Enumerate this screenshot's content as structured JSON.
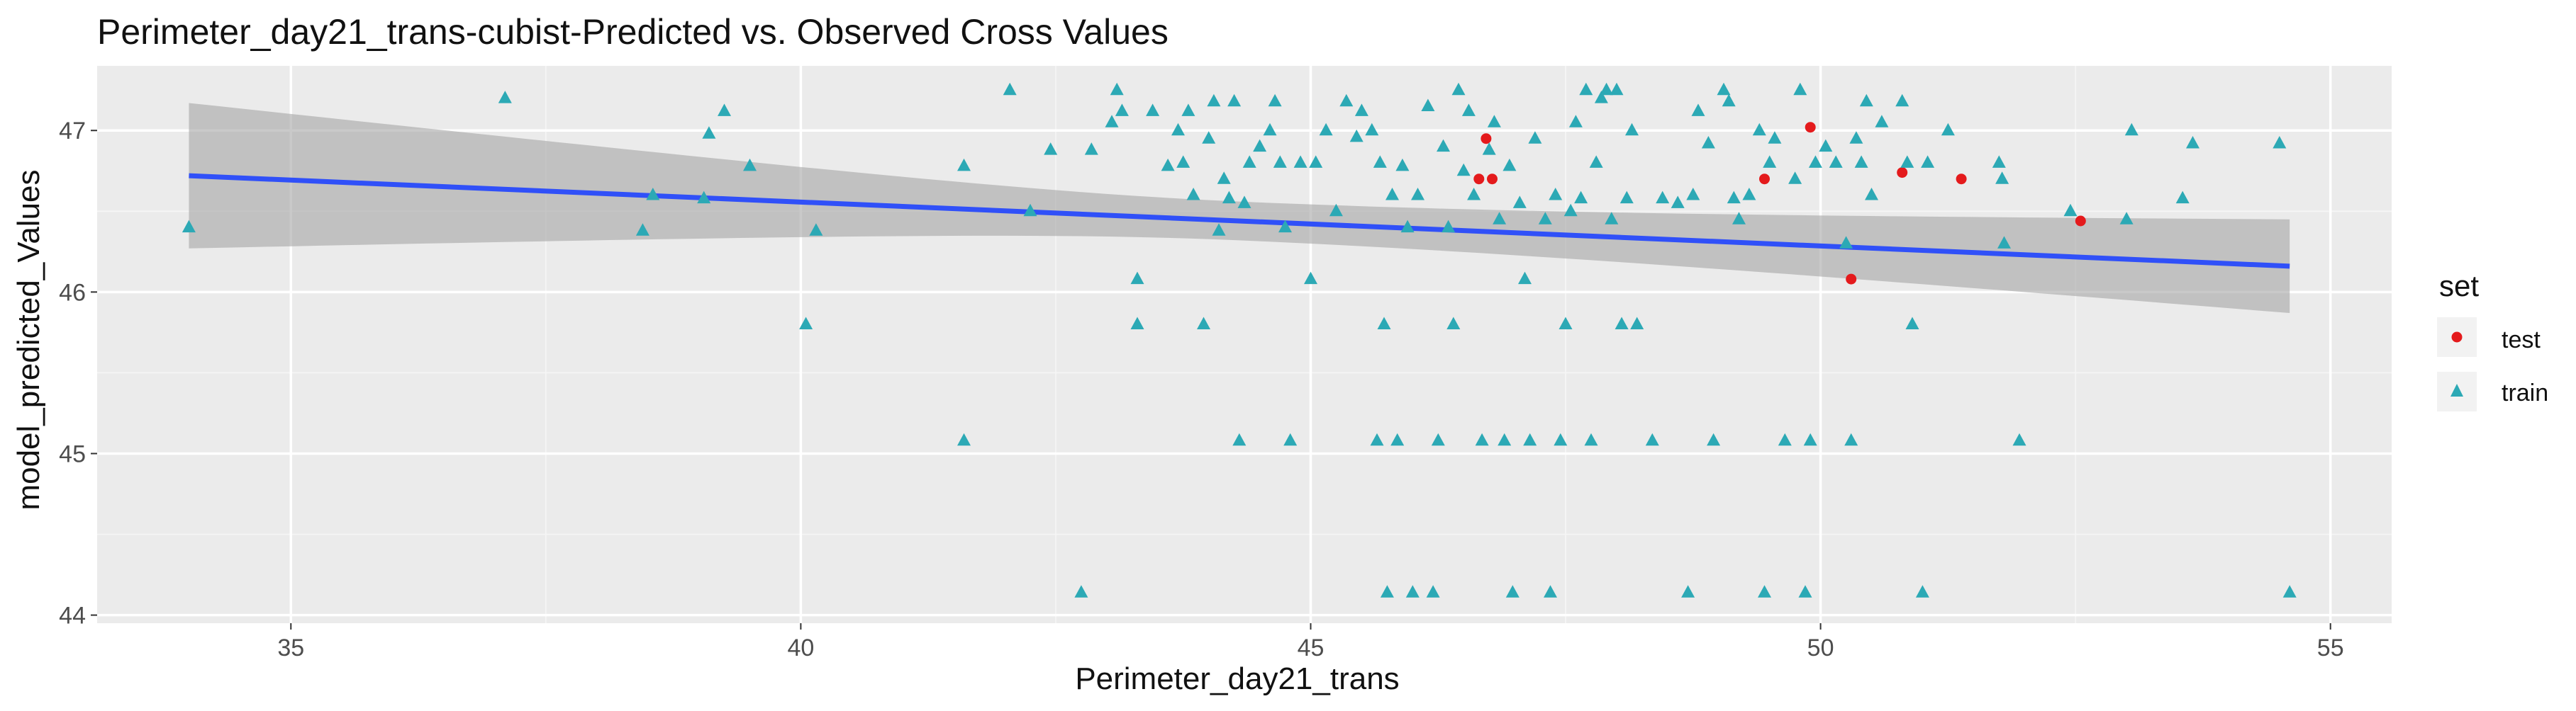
{
  "chart_data": {
    "type": "scatter",
    "title": "Perimeter_day21_trans-cubist-Predicted vs. Observed Cross Values",
    "xlabel": "Perimeter_day21_trans",
    "ylabel": "model_predicted_Values",
    "xlim": [
      33.1,
      55.6
    ],
    "ylim": [
      43.95,
      47.4
    ],
    "x_ticks": [
      35,
      40,
      45,
      50,
      55
    ],
    "y_ticks": [
      44,
      45,
      46,
      47
    ],
    "grid": true,
    "legend": {
      "title": "set",
      "position": "right",
      "entries": [
        {
          "label": "test",
          "color": "#F8766D",
          "shape": "circle"
        },
        {
          "label": "train",
          "color": "#00BFC4",
          "shape": "triangle"
        }
      ]
    },
    "colors": {
      "panel_background": "#EBEBEB",
      "grid_major": "#FFFFFF",
      "grid_minor": "#F5F5F5",
      "test_points": "#E41A1C",
      "train_points": "#2CA9B5",
      "smooth_line": "#3050F8",
      "confidence_band": "#A8A8A8"
    },
    "series": [
      {
        "name": "test",
        "shape": "circle",
        "points": [
          [
            46.65,
            46.7
          ],
          [
            46.78,
            46.7
          ],
          [
            46.72,
            46.95
          ],
          [
            49.45,
            46.7
          ],
          [
            49.9,
            47.02
          ],
          [
            50.3,
            46.08
          ],
          [
            50.8,
            46.74
          ],
          [
            51.38,
            46.7
          ],
          [
            52.55,
            46.44
          ]
        ]
      },
      {
        "name": "train",
        "shape": "triangle",
        "points": [
          [
            34.0,
            46.4
          ],
          [
            37.1,
            47.2
          ],
          [
            38.45,
            46.38
          ],
          [
            38.55,
            46.6
          ],
          [
            39.05,
            46.58
          ],
          [
            39.1,
            46.98
          ],
          [
            39.25,
            47.12
          ],
          [
            39.5,
            46.78
          ],
          [
            40.05,
            45.8
          ],
          [
            40.15,
            46.38
          ],
          [
            41.6,
            46.78
          ],
          [
            41.6,
            45.08
          ],
          [
            42.05,
            47.25
          ],
          [
            42.25,
            46.5
          ],
          [
            42.45,
            46.88
          ],
          [
            42.75,
            44.14
          ],
          [
            42.85,
            46.88
          ],
          [
            43.05,
            47.05
          ],
          [
            43.1,
            47.25
          ],
          [
            43.15,
            47.12
          ],
          [
            43.3,
            46.08
          ],
          [
            43.3,
            45.8
          ],
          [
            43.45,
            47.12
          ],
          [
            43.6,
            46.78
          ],
          [
            43.7,
            47.0
          ],
          [
            43.75,
            46.8
          ],
          [
            43.8,
            47.12
          ],
          [
            43.85,
            46.6
          ],
          [
            43.95,
            45.8
          ],
          [
            44.0,
            46.95
          ],
          [
            44.05,
            47.18
          ],
          [
            44.1,
            46.38
          ],
          [
            44.15,
            46.7
          ],
          [
            44.2,
            46.58
          ],
          [
            44.25,
            47.18
          ],
          [
            44.3,
            45.08
          ],
          [
            44.35,
            46.55
          ],
          [
            44.4,
            46.8
          ],
          [
            44.5,
            46.9
          ],
          [
            44.6,
            47.0
          ],
          [
            44.65,
            47.18
          ],
          [
            44.7,
            46.8
          ],
          [
            44.75,
            46.4
          ],
          [
            44.8,
            45.08
          ],
          [
            44.9,
            46.8
          ],
          [
            45.0,
            46.08
          ],
          [
            45.05,
            46.8
          ],
          [
            45.15,
            47.0
          ],
          [
            45.25,
            46.5
          ],
          [
            45.35,
            47.18
          ],
          [
            45.45,
            46.96
          ],
          [
            45.5,
            47.12
          ],
          [
            45.6,
            47.0
          ],
          [
            45.65,
            45.08
          ],
          [
            45.68,
            46.8
          ],
          [
            45.72,
            45.8
          ],
          [
            45.75,
            44.14
          ],
          [
            45.8,
            46.6
          ],
          [
            45.85,
            45.08
          ],
          [
            45.9,
            46.78
          ],
          [
            45.95,
            46.4
          ],
          [
            46.0,
            44.14
          ],
          [
            46.05,
            46.6
          ],
          [
            46.15,
            47.15
          ],
          [
            46.2,
            44.14
          ],
          [
            46.25,
            45.08
          ],
          [
            46.3,
            46.9
          ],
          [
            46.35,
            46.4
          ],
          [
            46.4,
            45.8
          ],
          [
            46.45,
            47.25
          ],
          [
            46.5,
            46.75
          ],
          [
            46.55,
            47.12
          ],
          [
            46.6,
            46.6
          ],
          [
            46.68,
            45.08
          ],
          [
            46.75,
            46.88
          ],
          [
            46.8,
            47.05
          ],
          [
            46.85,
            46.45
          ],
          [
            46.9,
            45.08
          ],
          [
            46.95,
            46.78
          ],
          [
            46.98,
            44.14
          ],
          [
            47.05,
            46.55
          ],
          [
            47.1,
            46.08
          ],
          [
            47.15,
            45.08
          ],
          [
            47.2,
            46.95
          ],
          [
            47.3,
            46.45
          ],
          [
            47.35,
            44.14
          ],
          [
            47.4,
            46.6
          ],
          [
            47.45,
            45.08
          ],
          [
            47.5,
            45.8
          ],
          [
            47.55,
            46.5
          ],
          [
            47.6,
            47.05
          ],
          [
            47.65,
            46.58
          ],
          [
            47.7,
            47.25
          ],
          [
            47.75,
            45.08
          ],
          [
            47.8,
            46.8
          ],
          [
            47.85,
            47.2
          ],
          [
            47.9,
            47.25
          ],
          [
            47.95,
            46.45
          ],
          [
            48.0,
            47.25
          ],
          [
            48.05,
            45.8
          ],
          [
            48.1,
            46.58
          ],
          [
            48.15,
            47.0
          ],
          [
            48.2,
            45.8
          ],
          [
            48.35,
            45.08
          ],
          [
            48.45,
            46.58
          ],
          [
            48.6,
            46.55
          ],
          [
            48.7,
            44.14
          ],
          [
            48.75,
            46.6
          ],
          [
            48.8,
            47.12
          ],
          [
            48.9,
            46.92
          ],
          [
            48.95,
            45.08
          ],
          [
            49.05,
            47.25
          ],
          [
            49.1,
            47.18
          ],
          [
            49.15,
            46.58
          ],
          [
            49.2,
            46.45
          ],
          [
            49.3,
            46.6
          ],
          [
            49.4,
            47.0
          ],
          [
            49.45,
            44.14
          ],
          [
            49.5,
            46.8
          ],
          [
            49.55,
            46.95
          ],
          [
            49.65,
            45.08
          ],
          [
            49.75,
            46.7
          ],
          [
            49.8,
            47.25
          ],
          [
            49.85,
            44.14
          ],
          [
            49.9,
            45.08
          ],
          [
            49.95,
            46.8
          ],
          [
            50.05,
            46.9
          ],
          [
            50.15,
            46.8
          ],
          [
            50.25,
            46.3
          ],
          [
            50.3,
            45.08
          ],
          [
            50.35,
            46.95
          ],
          [
            50.4,
            46.8
          ],
          [
            50.45,
            47.18
          ],
          [
            50.5,
            46.6
          ],
          [
            50.6,
            47.05
          ],
          [
            50.8,
            47.18
          ],
          [
            50.85,
            46.8
          ],
          [
            50.9,
            45.8
          ],
          [
            51.0,
            44.14
          ],
          [
            51.05,
            46.8
          ],
          [
            51.25,
            47.0
          ],
          [
            51.75,
            46.8
          ],
          [
            51.78,
            46.7
          ],
          [
            51.8,
            46.3
          ],
          [
            51.95,
            45.08
          ],
          [
            52.45,
            46.5
          ],
          [
            53.0,
            46.45
          ],
          [
            53.05,
            47.0
          ],
          [
            53.55,
            46.58
          ],
          [
            53.65,
            46.92
          ],
          [
            54.5,
            46.92
          ],
          [
            54.6,
            44.14
          ]
        ]
      }
    ],
    "smooth": {
      "method": "linear",
      "x": [
        34.0,
        54.6
      ],
      "fit": [
        46.72,
        46.16
      ],
      "lower": [
        46.27,
        45.86
      ],
      "upper": [
        47.17,
        46.45
      ]
    }
  }
}
